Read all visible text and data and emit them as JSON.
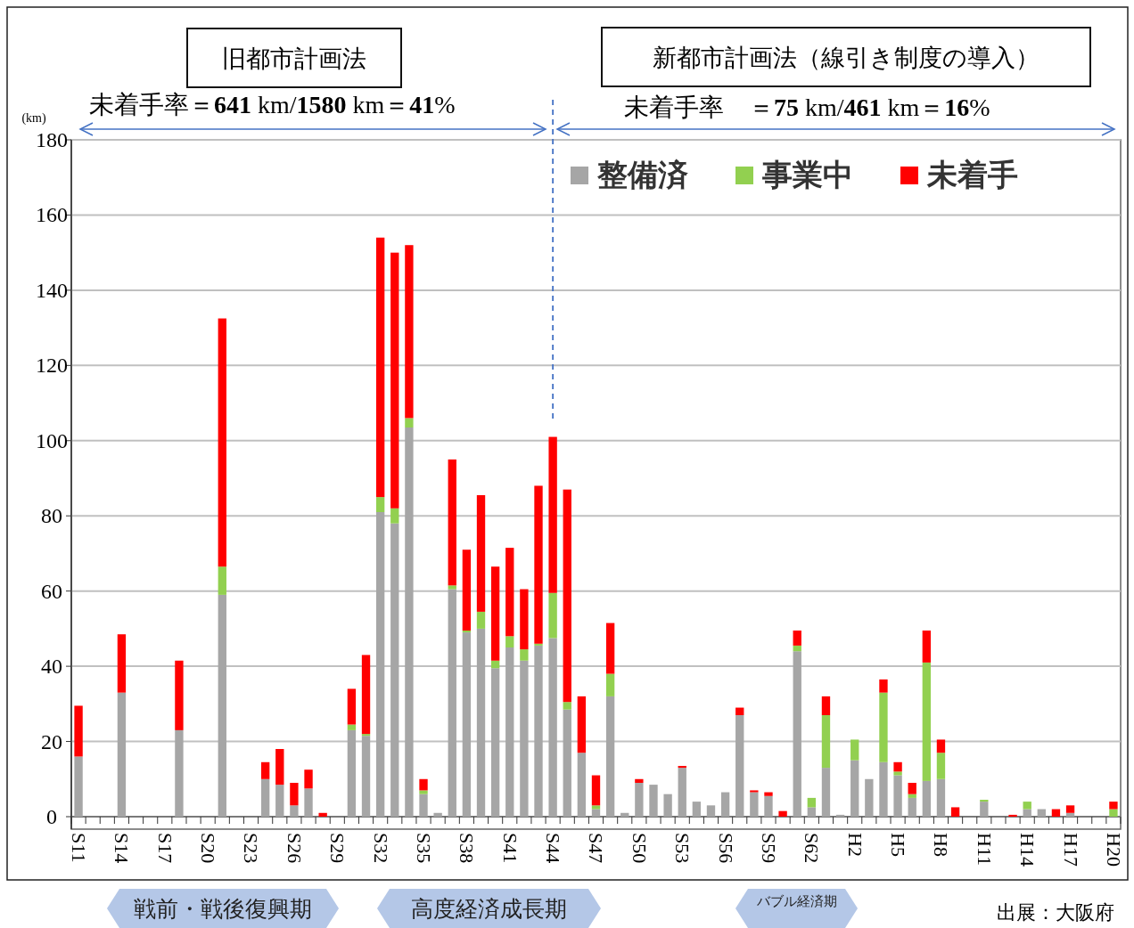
{
  "chart_data": {
    "type": "bar",
    "stacked": true,
    "categories": [
      "S11",
      null,
      null,
      "S14",
      null,
      null,
      "S17",
      null,
      null,
      "S20",
      null,
      null,
      "S23",
      null,
      null,
      "S26",
      null,
      null,
      "S29",
      null,
      null,
      "S32",
      null,
      null,
      "S35",
      null,
      null,
      "S38",
      null,
      null,
      "S41",
      null,
      null,
      "S44",
      null,
      null,
      "S47",
      null,
      null,
      "S50",
      null,
      null,
      "S53",
      null,
      null,
      "S56",
      null,
      null,
      "S59",
      null,
      null,
      "S62",
      null,
      null,
      "H2",
      null,
      null,
      "H5",
      null,
      null,
      "H8",
      null,
      null,
      "H11",
      null,
      null,
      "H14",
      null,
      null,
      "H17",
      null,
      null,
      "H20"
    ],
    "series": [
      {
        "name": "整備済",
        "color": "#a6a6a6",
        "values": [
          16,
          0,
          0,
          33,
          0,
          0,
          0,
          23,
          0,
          0,
          59,
          0,
          0,
          10,
          8.5,
          3,
          7.5,
          0,
          0,
          23,
          21.5,
          81,
          78,
          103.5,
          6,
          1,
          60.5,
          49,
          50,
          39.5,
          45,
          41.5,
          45.5,
          47.5,
          28.5,
          17,
          2,
          32,
          1,
          9,
          8.5,
          6,
          13,
          4,
          3,
          6.5,
          27,
          6.5,
          5.5,
          0,
          44,
          2.5,
          13,
          0.5,
          15,
          10,
          14.5,
          11,
          5,
          9.5,
          10,
          0,
          0,
          4,
          0,
          0,
          2,
          2,
          0,
          1,
          0,
          0,
          0
        ]
      },
      {
        "name": "事業中",
        "color": "#92d050",
        "values": [
          0,
          0,
          0,
          0,
          0,
          0,
          0,
          0,
          0,
          0,
          7.5,
          0,
          0,
          0,
          0,
          0,
          0,
          0,
          0,
          1.5,
          0.5,
          4,
          4,
          2.5,
          1,
          0,
          1,
          0.5,
          4.5,
          2,
          3,
          3,
          0.5,
          12,
          2,
          0,
          1,
          6,
          0,
          0,
          0,
          0,
          0,
          0,
          0,
          0,
          0,
          0,
          0,
          0,
          1.5,
          2.5,
          14,
          0,
          5.5,
          0,
          18.5,
          1,
          1,
          31.5,
          7,
          0,
          0,
          0.5,
          0,
          0,
          2,
          0,
          0,
          0,
          0,
          0,
          2
        ]
      },
      {
        "name": "未着手",
        "color": "#ff0000",
        "values": [
          13.5,
          0,
          0,
          15.5,
          0,
          0,
          0,
          18.5,
          0,
          0,
          66,
          0,
          0,
          4.5,
          9.5,
          6,
          5,
          1,
          0,
          9.5,
          21,
          69,
          68,
          46,
          3,
          0,
          33.5,
          21.5,
          31,
          25,
          23.5,
          16,
          42,
          41.5,
          56.5,
          15,
          8,
          13.5,
          0,
          1,
          0,
          0,
          0.5,
          0,
          0,
          0,
          2,
          0.5,
          1,
          1.5,
          4,
          0,
          5,
          0,
          0,
          0,
          3.5,
          2.5,
          3,
          8.5,
          3.5,
          2.5,
          0,
          0,
          0,
          0.5,
          0,
          0,
          2,
          2,
          0,
          0,
          2
        ]
      }
    ],
    "ylim": [
      0,
      180
    ],
    "yticks": [
      0,
      20,
      40,
      60,
      80,
      100,
      120,
      140,
      160,
      180
    ],
    "ylabel": "(km)",
    "grid": "y",
    "legend": "top right",
    "ref_lines": [
      {
        "axis": "x",
        "value": "S44",
        "color": "#4472c4",
        "line_style": "dashed"
      }
    ],
    "annotations": [
      "旧都市計画法",
      "新都市計画法（線引き制度の導入）",
      "未着手率＝641 km/1580 km＝41%",
      "未着手率　＝75 km/461 km＝16%",
      "戦前・戦後復興期",
      "高度経済成長期",
      "バブル経済期",
      "出展：大阪府"
    ]
  }
}
